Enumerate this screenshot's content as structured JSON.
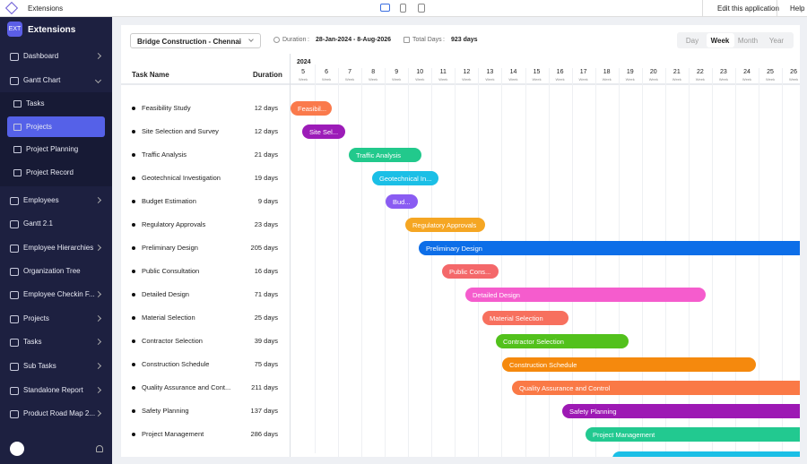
{
  "window_title": "Extensions",
  "topbar": {
    "edit": "Edit this application",
    "help": "Help"
  },
  "sidebar": {
    "logo": "EXT",
    "app_name": "Extensions",
    "items": [
      "Dashboard",
      "Gantt Chart",
      "Employees",
      "Gantt 2.1",
      "Employee Hierarchies",
      "Organization Tree",
      "Employee Checkin F...",
      "Projects",
      "Tasks",
      "Sub Tasks",
      "Standalone Report",
      "Product Road Map 2..."
    ],
    "sub_items": [
      "Tasks",
      "Projects",
      "Project Planning",
      "Project Record"
    ]
  },
  "toolbar": {
    "project": "Bridge Construction - Chennai",
    "duration_label": "Duration",
    "duration_sep": ":",
    "duration": "28-Jan-2024 - 8-Aug-2026",
    "total_label": "Total Days",
    "total_sep": ":",
    "total": "923 days",
    "views": [
      "Day",
      "Week",
      "Month",
      "Year"
    ]
  },
  "columns": [
    "Task Name",
    "Duration"
  ],
  "timeline": {
    "year": "2024",
    "week_unit": "Week",
    "weeks": [
      "5",
      "6",
      "7",
      "8",
      "9",
      "10",
      "11",
      "12",
      "13",
      "14",
      "15",
      "16",
      "17",
      "18",
      "19",
      "20",
      "21",
      "22",
      "23",
      "24",
      "25",
      "26"
    ]
  },
  "tasks": [
    {
      "name": "Feasibility Study",
      "duration": "12 days",
      "bar": "Feasibil..."
    },
    {
      "name": "Site Selection and Survey",
      "duration": "12 days",
      "bar": "Site Sel..."
    },
    {
      "name": "Traffic Analysis",
      "duration": "21 days",
      "bar": "Traffic Analysis"
    },
    {
      "name": "Geotechnical Investigation",
      "duration": "19 days",
      "bar": "Geotechnical In..."
    },
    {
      "name": "Budget Estimation",
      "duration": "9 days",
      "bar": "Bud..."
    },
    {
      "name": "Regulatory Approvals",
      "duration": "23 days",
      "bar": "Regulatory Approvals"
    },
    {
      "name": "Preliminary Design",
      "duration": "205 days",
      "bar": "Preliminary Design"
    },
    {
      "name": "Public Consultation",
      "duration": "16 days",
      "bar": "Public Cons..."
    },
    {
      "name": "Detailed Design",
      "duration": "71 days",
      "bar": "Detailed Design"
    },
    {
      "name": "Material Selection",
      "duration": "25 days",
      "bar": "Material Selection"
    },
    {
      "name": "Contractor Selection",
      "duration": "39 days",
      "bar": "Contractor Selection"
    },
    {
      "name": "Construction Schedule",
      "duration": "75 days",
      "bar": "Construction Schedule"
    },
    {
      "name": "Quality Assurance and Cont...",
      "duration": "211 days",
      "bar": "Quality Assurance and Control"
    },
    {
      "name": "Safety Planning",
      "duration": "137 days",
      "bar": "Safety Planning"
    },
    {
      "name": "Project Management",
      "duration": "286 days",
      "bar": "Project Management"
    }
  ]
}
